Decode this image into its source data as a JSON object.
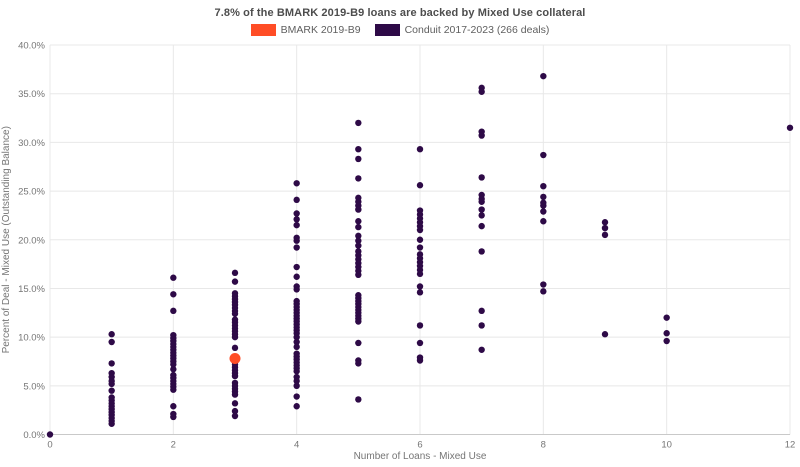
{
  "title": "7.8% of the BMARK 2019-B9 loans are backed by Mixed Use collateral",
  "legend": [
    {
      "label": "BMARK 2019-B9",
      "color": "#FF4D26"
    },
    {
      "label": "Conduit 2017-2023 (266 deals)",
      "color": "#2E0A47"
    }
  ],
  "chart_data": {
    "type": "scatter",
    "title": "7.8% of the BMARK 2019-B9 loans are backed by Mixed Use collateral",
    "xlabel": "Number of Loans - Mixed Use",
    "ylabel": "Percent of Deal - Mixed Use (Outstanding Balance)",
    "xlim": [
      0,
      12
    ],
    "ylim": [
      0,
      40
    ],
    "x_ticks": [
      0,
      2,
      4,
      6,
      8,
      10,
      12
    ],
    "x_tick_labels": [
      "0",
      "2",
      "4",
      "6",
      "8",
      "10",
      "12"
    ],
    "y_ticks": [
      0,
      5,
      10,
      15,
      20,
      25,
      30,
      35,
      40
    ],
    "y_tick_labels": [
      "0.0%",
      "5.0%",
      "10.0%",
      "15.0%",
      "20.0%",
      "25.0%",
      "30.0%",
      "35.0%",
      "40.0%"
    ],
    "grid": true,
    "grid_color": "#e8e8e8",
    "axis_line_color": "#c9c9c9",
    "tick_label_color": "#757575",
    "legend_position": "top",
    "series": [
      {
        "name": "Conduit 2017-2023 (266 deals)",
        "color": "#2E0A47",
        "marker_radius": 3.2,
        "points": [
          [
            0,
            0.0
          ],
          [
            1,
            10.3
          ],
          [
            1,
            9.5
          ],
          [
            1,
            7.3
          ],
          [
            1,
            6.3
          ],
          [
            1,
            5.9
          ],
          [
            1,
            5.5
          ],
          [
            1,
            5.2
          ],
          [
            1,
            4.5
          ],
          [
            1,
            3.8
          ],
          [
            1,
            3.5
          ],
          [
            1,
            3.2
          ],
          [
            1,
            2.9
          ],
          [
            1,
            2.6
          ],
          [
            1,
            2.3
          ],
          [
            1,
            2.0
          ],
          [
            1,
            1.7
          ],
          [
            1,
            1.4
          ],
          [
            1,
            1.1
          ],
          [
            2,
            16.1
          ],
          [
            2,
            14.4
          ],
          [
            2,
            12.7
          ],
          [
            2,
            10.2
          ],
          [
            2,
            9.9
          ],
          [
            2,
            9.6
          ],
          [
            2,
            9.3
          ],
          [
            2,
            9.0
          ],
          [
            2,
            8.7
          ],
          [
            2,
            8.4
          ],
          [
            2,
            8.1
          ],
          [
            2,
            7.8
          ],
          [
            2,
            7.5
          ],
          [
            2,
            7.2
          ],
          [
            2,
            6.7
          ],
          [
            2,
            6.1
          ],
          [
            2,
            5.8
          ],
          [
            2,
            5.5
          ],
          [
            2,
            5.2
          ],
          [
            2,
            4.9
          ],
          [
            2,
            4.6
          ],
          [
            2,
            2.9
          ],
          [
            2,
            2.1
          ],
          [
            2,
            1.8
          ],
          [
            3,
            16.6
          ],
          [
            3,
            15.7
          ],
          [
            3,
            14.5
          ],
          [
            3,
            14.2
          ],
          [
            3,
            13.9
          ],
          [
            3,
            13.6
          ],
          [
            3,
            13.3
          ],
          [
            3,
            13.0
          ],
          [
            3,
            12.7
          ],
          [
            3,
            12.4
          ],
          [
            3,
            11.8
          ],
          [
            3,
            11.5
          ],
          [
            3,
            11.2
          ],
          [
            3,
            10.9
          ],
          [
            3,
            10.6
          ],
          [
            3,
            10.3
          ],
          [
            3,
            10.0
          ],
          [
            3,
            8.9
          ],
          [
            3,
            7.2
          ],
          [
            3,
            6.9
          ],
          [
            3,
            6.6
          ],
          [
            3,
            6.3
          ],
          [
            3,
            6.0
          ],
          [
            3,
            5.3
          ],
          [
            3,
            5.0
          ],
          [
            3,
            4.7
          ],
          [
            3,
            4.4
          ],
          [
            3,
            4.1
          ],
          [
            3,
            3.2
          ],
          [
            3,
            2.4
          ],
          [
            3,
            1.9
          ],
          [
            4,
            25.8
          ],
          [
            4,
            24.1
          ],
          [
            4,
            22.7
          ],
          [
            4,
            22.1
          ],
          [
            4,
            21.5
          ],
          [
            4,
            20.2
          ],
          [
            4,
            19.9
          ],
          [
            4,
            19.2
          ],
          [
            4,
            17.2
          ],
          [
            4,
            16.2
          ],
          [
            4,
            15.2
          ],
          [
            4,
            14.9
          ],
          [
            4,
            13.7
          ],
          [
            4,
            13.4
          ],
          [
            4,
            13.1
          ],
          [
            4,
            12.8
          ],
          [
            4,
            12.5
          ],
          [
            4,
            12.2
          ],
          [
            4,
            11.9
          ],
          [
            4,
            11.6
          ],
          [
            4,
            11.3
          ],
          [
            4,
            11.0
          ],
          [
            4,
            10.7
          ],
          [
            4,
            10.4
          ],
          [
            4,
            10.0
          ],
          [
            4,
            9.5
          ],
          [
            4,
            9.0
          ],
          [
            4,
            8.3
          ],
          [
            4,
            8.0
          ],
          [
            4,
            7.7
          ],
          [
            4,
            7.4
          ],
          [
            4,
            7.1
          ],
          [
            4,
            6.8
          ],
          [
            4,
            6.5
          ],
          [
            4,
            5.9
          ],
          [
            4,
            5.5
          ],
          [
            4,
            5.0
          ],
          [
            4,
            3.9
          ],
          [
            4,
            2.9
          ],
          [
            5,
            32.0
          ],
          [
            5,
            29.3
          ],
          [
            5,
            28.3
          ],
          [
            5,
            26.3
          ],
          [
            5,
            24.3
          ],
          [
            5,
            23.9
          ],
          [
            5,
            23.5
          ],
          [
            5,
            23.1
          ],
          [
            5,
            21.9
          ],
          [
            5,
            21.3
          ],
          [
            5,
            20.4
          ],
          [
            5,
            19.9
          ],
          [
            5,
            19.4
          ],
          [
            5,
            18.8
          ],
          [
            5,
            18.4
          ],
          [
            5,
            18.0
          ],
          [
            5,
            17.6
          ],
          [
            5,
            17.2
          ],
          [
            5,
            16.8
          ],
          [
            5,
            16.4
          ],
          [
            5,
            14.3
          ],
          [
            5,
            14.0
          ],
          [
            5,
            13.7
          ],
          [
            5,
            13.4
          ],
          [
            5,
            13.1
          ],
          [
            5,
            12.8
          ],
          [
            5,
            12.5
          ],
          [
            5,
            12.2
          ],
          [
            5,
            11.9
          ],
          [
            5,
            11.6
          ],
          [
            5,
            9.4
          ],
          [
            5,
            7.6
          ],
          [
            5,
            7.3
          ],
          [
            5,
            3.6
          ],
          [
            6,
            29.3
          ],
          [
            6,
            25.6
          ],
          [
            6,
            23.0
          ],
          [
            6,
            22.6
          ],
          [
            6,
            22.2
          ],
          [
            6,
            21.8
          ],
          [
            6,
            21.4
          ],
          [
            6,
            21.0
          ],
          [
            6,
            20.0
          ],
          [
            6,
            19.2
          ],
          [
            6,
            18.5
          ],
          [
            6,
            18.1
          ],
          [
            6,
            17.7
          ],
          [
            6,
            17.3
          ],
          [
            6,
            16.9
          ],
          [
            6,
            16.5
          ],
          [
            6,
            15.2
          ],
          [
            6,
            14.6
          ],
          [
            6,
            11.2
          ],
          [
            6,
            9.4
          ],
          [
            6,
            7.9
          ],
          [
            6,
            7.6
          ],
          [
            7,
            35.6
          ],
          [
            7,
            35.2
          ],
          [
            7,
            31.1
          ],
          [
            7,
            30.7
          ],
          [
            7,
            26.4
          ],
          [
            7,
            24.6
          ],
          [
            7,
            24.2
          ],
          [
            7,
            23.9
          ],
          [
            7,
            23.1
          ],
          [
            7,
            22.5
          ],
          [
            7,
            21.4
          ],
          [
            7,
            18.8
          ],
          [
            7,
            12.7
          ],
          [
            7,
            11.2
          ],
          [
            7,
            8.7
          ],
          [
            8,
            36.8
          ],
          [
            8,
            28.7
          ],
          [
            8,
            25.5
          ],
          [
            8,
            24.4
          ],
          [
            8,
            23.8
          ],
          [
            8,
            23.5
          ],
          [
            8,
            22.9
          ],
          [
            8,
            21.9
          ],
          [
            8,
            15.4
          ],
          [
            8,
            14.7
          ],
          [
            9,
            21.8
          ],
          [
            9,
            21.2
          ],
          [
            9,
            20.5
          ],
          [
            9,
            10.3
          ],
          [
            10,
            12.0
          ],
          [
            10,
            10.4
          ],
          [
            10,
            9.6
          ],
          [
            12,
            31.5
          ]
        ]
      },
      {
        "name": "BMARK 2019-B9",
        "color": "#FF4D26",
        "marker_radius": 5.5,
        "points": [
          [
            3,
            7.8
          ]
        ]
      }
    ]
  }
}
